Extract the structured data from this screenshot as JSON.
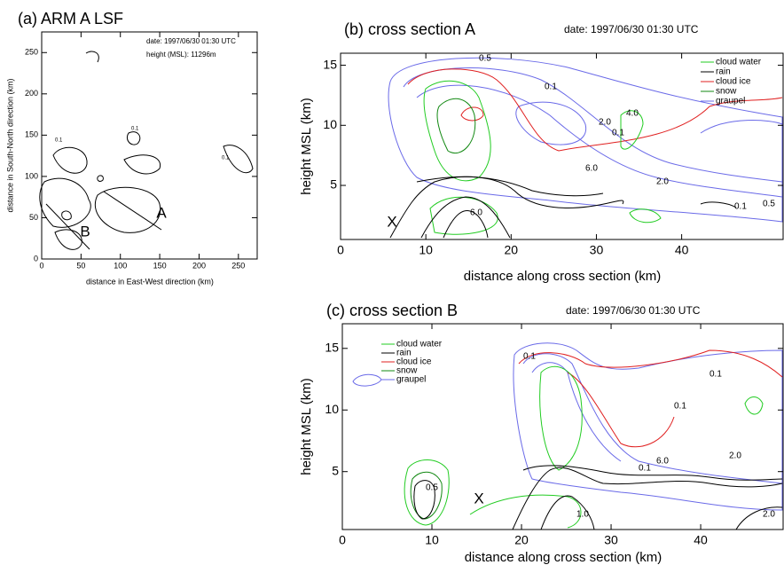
{
  "chart_data": [
    {
      "type": "contour",
      "title": "(a) ARM A LSF",
      "xlabel": "distance in East-West direction (km)",
      "ylabel": "distance in South-North direction (km)",
      "xlim": [
        0,
        275
      ],
      "ylim": [
        0,
        275
      ],
      "xticks": [
        0,
        50,
        100,
        150,
        200,
        250
      ],
      "yticks": [
        0,
        50,
        100,
        150,
        200,
        250
      ],
      "annotations": [
        "date: 1997/06/30   01:30 UTC",
        "height (MSL): 11296m",
        "A",
        "B"
      ],
      "contour_labels": [
        "0.1",
        "0.1",
        "0.1"
      ]
    },
    {
      "type": "contour",
      "title": "(b) cross section A",
      "date": "date: 1997/06/30   01:30 UTC",
      "xlabel": "distance along cross section (km)",
      "ylabel": "height MSL (km)",
      "xlim": [
        0,
        52
      ],
      "ylim": [
        0.5,
        16
      ],
      "xticks": [
        0,
        10,
        20,
        30,
        40
      ],
      "yticks": [
        5,
        10,
        15
      ],
      "series": [
        {
          "name": "cloud water",
          "color": "#22cc22"
        },
        {
          "name": "rain",
          "color": "#000000"
        },
        {
          "name": "cloud ice",
          "color": "#e02020"
        },
        {
          "name": "snow",
          "color": "#118811"
        },
        {
          "name": "graupel",
          "color": "#6a6ae8"
        }
      ],
      "annotations": [
        "X"
      ],
      "contour_labels": [
        "0.5",
        "0.1",
        "2.0",
        "4.0",
        "0.1",
        "6.0",
        "2.0",
        "0.5",
        "0.1",
        "6.0"
      ]
    },
    {
      "type": "contour",
      "title": "(c) cross section B",
      "date": "date: 1997/06/30   01:30 UTC",
      "xlabel": "distance along cross section (km)",
      "ylabel": "height MSL (km)",
      "xlim": [
        0,
        49.3
      ],
      "ylim": [
        0.3,
        17
      ],
      "xticks": [
        0,
        10,
        20,
        30,
        40
      ],
      "yticks": [
        5,
        10,
        15
      ],
      "series": [
        {
          "name": "cloud water",
          "color": "#22cc22"
        },
        {
          "name": "rain",
          "color": "#000000"
        },
        {
          "name": "cloud ice",
          "color": "#e02020"
        },
        {
          "name": "snow",
          "color": "#118811"
        },
        {
          "name": "graupel",
          "color": "#6a6ae8"
        }
      ],
      "annotations": [
        "X"
      ],
      "contour_labels": [
        "0.1",
        "0.1",
        "0.1",
        "6.0",
        "2.0",
        "0.1",
        "1.0",
        "2.0",
        "0.5"
      ]
    }
  ]
}
